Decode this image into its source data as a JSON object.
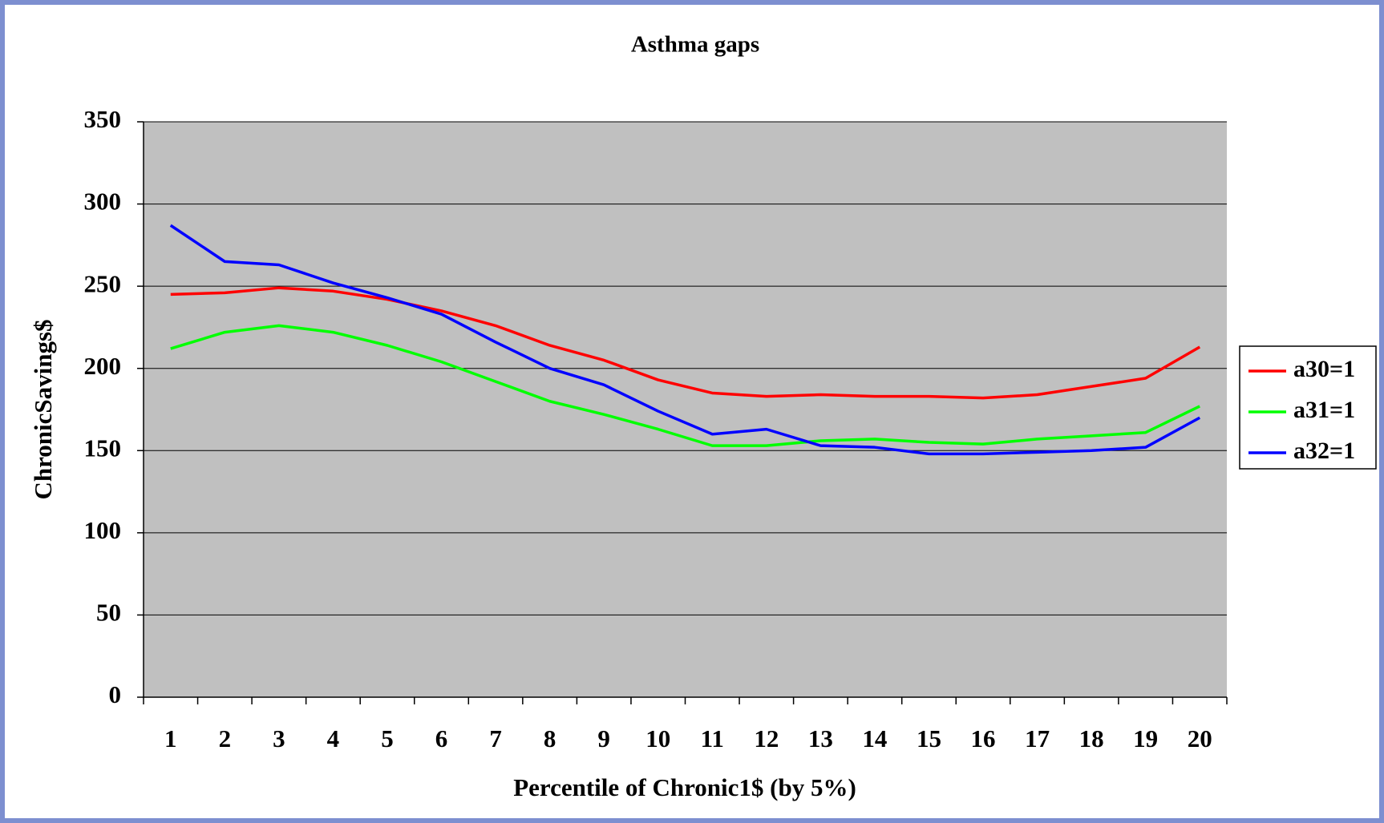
{
  "chart_data": {
    "type": "line",
    "title": "Asthma gaps",
    "x_label": "Percentile of Chronic1$ (by 5%)",
    "y_label": "ChronicSavings$",
    "categories": [
      "1",
      "2",
      "3",
      "4",
      "5",
      "6",
      "7",
      "8",
      "9",
      "10",
      "11",
      "12",
      "13",
      "14",
      "15",
      "16",
      "17",
      "18",
      "19",
      "20"
    ],
    "series": [
      {
        "name": "a30=1",
        "color": "#ff0000",
        "values": [
          245,
          246,
          249,
          247,
          242,
          235,
          226,
          214,
          205,
          193,
          185,
          183,
          184,
          183,
          183,
          182,
          184,
          189,
          194,
          213
        ]
      },
      {
        "name": "a31=1",
        "color": "#00ff00",
        "values": [
          212,
          222,
          226,
          222,
          214,
          204,
          192,
          180,
          172,
          163,
          153,
          153,
          156,
          157,
          155,
          154,
          157,
          159,
          161,
          177
        ]
      },
      {
        "name": "a32=1",
        "color": "#0000ff",
        "values": [
          287,
          265,
          263,
          252,
          243,
          233,
          216,
          200,
          190,
          174,
          160,
          163,
          153,
          152,
          148,
          148,
          149,
          150,
          152,
          170
        ]
      }
    ],
    "ylim": [
      0,
      350
    ],
    "yticks": [
      0,
      50,
      100,
      150,
      200,
      250,
      300,
      350
    ],
    "grid": true,
    "legend": "right",
    "plot_background": "#c0c0c0"
  }
}
